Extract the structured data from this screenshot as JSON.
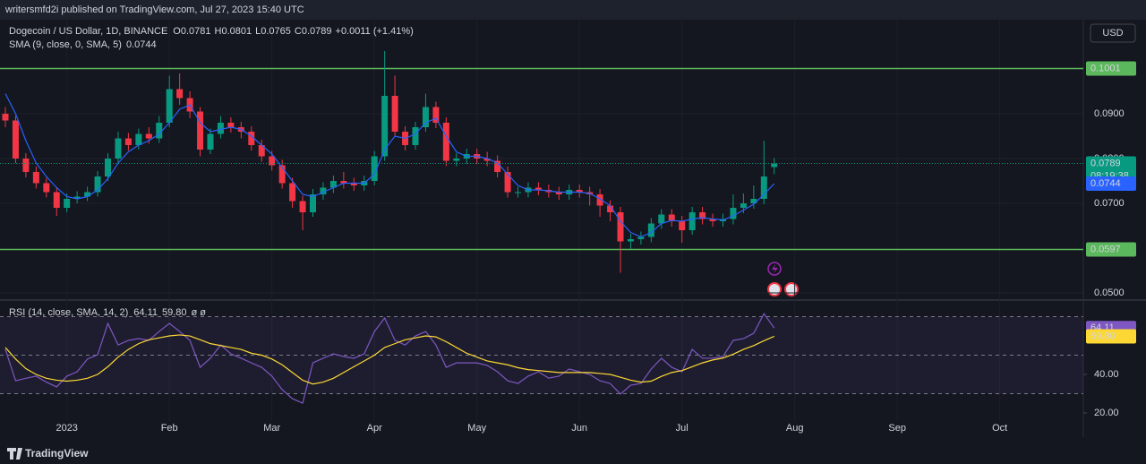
{
  "header": {
    "published": "writersmfd2i published on TradingView.com, Jul 27, 2023 15:40 UTC",
    "currency": "USD"
  },
  "footer": {
    "logo": "TradingView"
  },
  "chart_data": [
    {
      "type": "candlestick",
      "title": "Dogecoin / US Dollar, 1D, BINANCE",
      "ohlc_labels": [
        "O",
        "H",
        "L",
        "C"
      ],
      "change": "+0.0011 (+1.41%)",
      "countdown": "08:19:38",
      "up_color": "#089981",
      "down_color": "#f23645",
      "grid": true,
      "categories": [
        null,
        null,
        null,
        null,
        null,
        null,
        "2023",
        null,
        null,
        null,
        null,
        null,
        null,
        null,
        null,
        null,
        "Feb",
        null,
        null,
        null,
        null,
        null,
        null,
        null,
        null,
        null,
        "Mar",
        null,
        null,
        null,
        null,
        null,
        null,
        null,
        null,
        null,
        "Apr",
        null,
        null,
        null,
        null,
        null,
        null,
        null,
        null,
        null,
        "May",
        null,
        null,
        null,
        null,
        null,
        null,
        null,
        null,
        null,
        "Jun",
        null,
        null,
        null,
        null,
        null,
        null,
        null,
        null,
        null,
        "Jul",
        null,
        null,
        null,
        null,
        null,
        null,
        null,
        null,
        null,
        null,
        "Aug",
        null,
        null,
        null,
        null,
        null,
        null,
        null,
        null,
        null,
        "Sep",
        null,
        null,
        null,
        null,
        null,
        null,
        null,
        null,
        null,
        "Oct"
      ],
      "open": [
        0.09,
        0.0885,
        0.08,
        0.077,
        0.0745,
        0.0725,
        0.069,
        0.071,
        0.0715,
        0.0725,
        0.076,
        0.08,
        0.0845,
        0.083,
        0.0855,
        0.0845,
        0.088,
        0.0955,
        0.0935,
        0.0905,
        0.082,
        0.0855,
        0.088,
        0.087,
        0.086,
        0.083,
        0.0805,
        0.0785,
        0.0745,
        0.0705,
        0.068,
        0.072,
        0.0735,
        0.075,
        0.0745,
        0.074,
        0.075,
        0.0805,
        0.094,
        0.086,
        0.083,
        0.087,
        0.0915,
        0.088,
        0.0795,
        0.08,
        0.081,
        0.08,
        0.0795,
        0.077,
        0.0725,
        0.0725,
        0.0735,
        0.073,
        0.0725,
        0.072,
        0.073,
        0.0725,
        0.072,
        0.0695,
        0.068,
        0.0615,
        0.062,
        0.0625,
        0.0655,
        0.0675,
        0.066,
        0.064,
        0.068,
        0.0665,
        0.066,
        0.0665,
        0.069,
        0.07,
        0.071,
        0.0781,
        null,
        null,
        null,
        null,
        null,
        null,
        null,
        null,
        null,
        null,
        null,
        null,
        null,
        null,
        null,
        null,
        null,
        null,
        null,
        null,
        null,
        null
      ],
      "high": [
        0.0915,
        0.0895,
        0.0812,
        0.0782,
        0.0757,
        0.0737,
        0.0722,
        0.0727,
        0.0737,
        0.0772,
        0.0812,
        0.086,
        0.0857,
        0.0867,
        0.087,
        0.0895,
        0.0985,
        0.099,
        0.095,
        0.0915,
        0.0867,
        0.0895,
        0.0892,
        0.0882,
        0.0872,
        0.0842,
        0.0817,
        0.0797,
        0.0757,
        0.0717,
        0.0732,
        0.0747,
        0.0762,
        0.077,
        0.0757,
        0.0762,
        0.0817,
        0.104,
        0.0985,
        0.0872,
        0.0882,
        0.0945,
        0.0927,
        0.0892,
        0.0812,
        0.0822,
        0.0822,
        0.0815,
        0.0807,
        0.0782,
        0.0737,
        0.0747,
        0.0747,
        0.0742,
        0.0737,
        0.0742,
        0.0742,
        0.0737,
        0.0732,
        0.0707,
        0.0692,
        0.0632,
        0.0637,
        0.0667,
        0.0687,
        0.0687,
        0.0672,
        0.0692,
        0.0692,
        0.0677,
        0.0677,
        0.072,
        0.0722,
        0.074,
        0.084,
        0.0801,
        null,
        null,
        null,
        null,
        null,
        null,
        null,
        null,
        null,
        null,
        null,
        null,
        null,
        null,
        null,
        null,
        null,
        null,
        null,
        null,
        null,
        null
      ],
      "low": [
        0.087,
        0.079,
        0.0758,
        0.0733,
        0.0713,
        0.0672,
        0.068,
        0.07,
        0.0705,
        0.0715,
        0.075,
        0.079,
        0.0818,
        0.082,
        0.0833,
        0.0835,
        0.087,
        0.092,
        0.089,
        0.0805,
        0.081,
        0.0845,
        0.0858,
        0.0845,
        0.0818,
        0.0793,
        0.0773,
        0.0733,
        0.069,
        0.064,
        0.067,
        0.0708,
        0.0723,
        0.0733,
        0.0728,
        0.0728,
        0.074,
        0.0795,
        0.0848,
        0.0818,
        0.082,
        0.086,
        0.0868,
        0.0783,
        0.0783,
        0.0788,
        0.0788,
        0.0783,
        0.0758,
        0.0713,
        0.0713,
        0.0713,
        0.0718,
        0.0713,
        0.0708,
        0.0708,
        0.0713,
        0.0695,
        0.067,
        0.066,
        0.0545,
        0.0598,
        0.0608,
        0.0613,
        0.0643,
        0.0648,
        0.0612,
        0.063,
        0.0653,
        0.0648,
        0.0648,
        0.0653,
        0.0678,
        0.0688,
        0.0698,
        0.0765,
        null,
        null,
        null,
        null,
        null,
        null,
        null,
        null,
        null,
        null,
        null,
        null,
        null,
        null,
        null,
        null,
        null,
        null,
        null,
        null,
        null,
        null
      ],
      "close": [
        0.0885,
        0.08,
        0.077,
        0.0745,
        0.0725,
        0.069,
        0.071,
        0.0715,
        0.0725,
        0.076,
        0.08,
        0.0845,
        0.083,
        0.0855,
        0.0845,
        0.088,
        0.0955,
        0.0935,
        0.0905,
        0.082,
        0.0855,
        0.088,
        0.087,
        0.086,
        0.083,
        0.0805,
        0.0785,
        0.0745,
        0.0705,
        0.068,
        0.072,
        0.0735,
        0.075,
        0.0745,
        0.074,
        0.075,
        0.0805,
        0.094,
        0.086,
        0.083,
        0.087,
        0.0915,
        0.088,
        0.0795,
        0.08,
        0.081,
        0.08,
        0.0795,
        0.077,
        0.0725,
        0.0725,
        0.0735,
        0.073,
        0.0725,
        0.072,
        0.073,
        0.0725,
        0.072,
        0.0695,
        0.068,
        0.0615,
        0.062,
        0.0625,
        0.0655,
        0.0675,
        0.066,
        0.064,
        0.068,
        0.0665,
        0.066,
        0.0665,
        0.069,
        0.07,
        0.071,
        0.076,
        0.0789,
        null,
        null,
        null,
        null,
        null,
        null,
        null,
        null,
        null,
        null,
        null,
        null,
        null,
        null,
        null,
        null,
        null,
        null,
        null,
        null,
        null,
        null
      ],
      "lines": [
        {
          "name": "SMA (9, close, 0, SMA, 5)",
          "color": "#2962ff",
          "values": [
            0.0945,
            0.09,
            0.084,
            0.079,
            0.076,
            0.0735,
            0.0715,
            0.071,
            0.0715,
            0.073,
            0.0755,
            0.079,
            0.0815,
            0.083,
            0.084,
            0.0855,
            0.088,
            0.091,
            0.092,
            0.088,
            0.086,
            0.0865,
            0.087,
            0.0865,
            0.085,
            0.083,
            0.081,
            0.078,
            0.075,
            0.072,
            0.0715,
            0.0725,
            0.0735,
            0.0745,
            0.0745,
            0.0745,
            0.0765,
            0.082,
            0.085,
            0.0845,
            0.0855,
            0.088,
            0.089,
            0.085,
            0.0815,
            0.0805,
            0.0805,
            0.08,
            0.079,
            0.0765,
            0.074,
            0.073,
            0.073,
            0.0728,
            0.0725,
            0.0725,
            0.0725,
            0.0722,
            0.071,
            0.0695,
            0.066,
            0.0635,
            0.0625,
            0.0635,
            0.0655,
            0.0662,
            0.066,
            0.0665,
            0.0668,
            0.0665,
            0.0663,
            0.0672,
            0.0685,
            0.0698,
            0.072,
            0.0744,
            null,
            null,
            null,
            null,
            null,
            null,
            null,
            null,
            null,
            null,
            null,
            null,
            null,
            null,
            null,
            null,
            null,
            null,
            null,
            null,
            null,
            null
          ]
        }
      ],
      "hlines": [
        {
          "value": 0.1001,
          "color": "#5cb85c"
        },
        {
          "value": 0.0597,
          "color": "#5cb85c"
        }
      ],
      "ylim": [
        0.0488,
        0.111
      ],
      "yticks": [
        {
          "value": 0.05,
          "label": "0.0500"
        },
        {
          "value": 0.07,
          "label": "0.0700"
        },
        {
          "value": 0.08,
          "label": "0.0800"
        },
        {
          "value": 0.09,
          "label": "0.0900"
        }
      ]
    },
    {
      "type": "line",
      "title": "RSI (14, close, SMA, 14, 2)",
      "ma_last_label": "59.80",
      "legend_suffix": "ø ø",
      "bands": [
        30,
        50,
        70
      ],
      "band_color": "#7e57c2",
      "ylim": [
        15.8,
        77.7
      ],
      "yticks": [
        {
          "value": 20,
          "label": "20.00"
        },
        {
          "value": 40,
          "label": "40.00"
        }
      ],
      "series": [
        {
          "color": "#7e57c2",
          "values": [
            53.0,
            36.7,
            38.0,
            39.1,
            36.0,
            33.5,
            39.1,
            41.4,
            48.0,
            50.2,
            66.5,
            55.3,
            57.7,
            58.6,
            57.7,
            62.3,
            66.5,
            62.3,
            57.7,
            43.7,
            48.4,
            55.3,
            50.7,
            48.4,
            46.0,
            43.7,
            39.1,
            32.1,
            27.4,
            25.1,
            46.0,
            48.4,
            50.7,
            49.3,
            48.4,
            50.7,
            62.3,
            69.3,
            57.7,
            55.3,
            60.0,
            62.3,
            55.3,
            43.7,
            46.0,
            46.0,
            46.0,
            44.7,
            41.4,
            36.7,
            35.3,
            39.1,
            41.4,
            38.1,
            39.1,
            42.8,
            41.4,
            40.0,
            36.7,
            35.3,
            29.8,
            34.4,
            35.3,
            42.8,
            48.4,
            43.7,
            41.4,
            53.0,
            48.4,
            48.4,
            49.3,
            57.7,
            58.6,
            61.4,
            71.6,
            64.11,
            null,
            null,
            null,
            null,
            null,
            null,
            null,
            null,
            null,
            null,
            null,
            null,
            null,
            null,
            null,
            null,
            null,
            null,
            null,
            null,
            null,
            null
          ]
        },
        {
          "color": "#fdd835",
          "values": [
            54.0,
            48.0,
            43.0,
            40.0,
            38.0,
            37.0,
            36.5,
            37.0,
            38.0,
            40.0,
            44.0,
            49.0,
            53.0,
            56.0,
            58.0,
            59.0,
            60.0,
            60.5,
            60.0,
            58.0,
            56.0,
            55.0,
            54.0,
            53.0,
            51.0,
            50.0,
            48.0,
            45.0,
            41.0,
            37.0,
            35.0,
            36.0,
            38.0,
            41.0,
            44.0,
            47.0,
            50.0,
            54.0,
            56.0,
            58.0,
            59.0,
            60.0,
            59.5,
            57.0,
            54.0,
            51.0,
            49.0,
            47.0,
            46.0,
            45.0,
            43.5,
            42.5,
            42.0,
            41.5,
            41.0,
            41.0,
            41.0,
            41.0,
            40.5,
            40.0,
            38.5,
            37.0,
            36.0,
            36.5,
            39.0,
            41.0,
            42.0,
            44.0,
            46.0,
            47.5,
            48.5,
            50.5,
            53.0,
            55.0,
            57.5,
            59.8,
            null,
            null,
            null,
            null,
            null,
            null,
            null,
            null,
            null,
            null,
            null,
            null,
            null,
            null,
            null,
            null,
            null,
            null,
            null,
            null,
            null,
            null
          ]
        }
      ]
    }
  ]
}
